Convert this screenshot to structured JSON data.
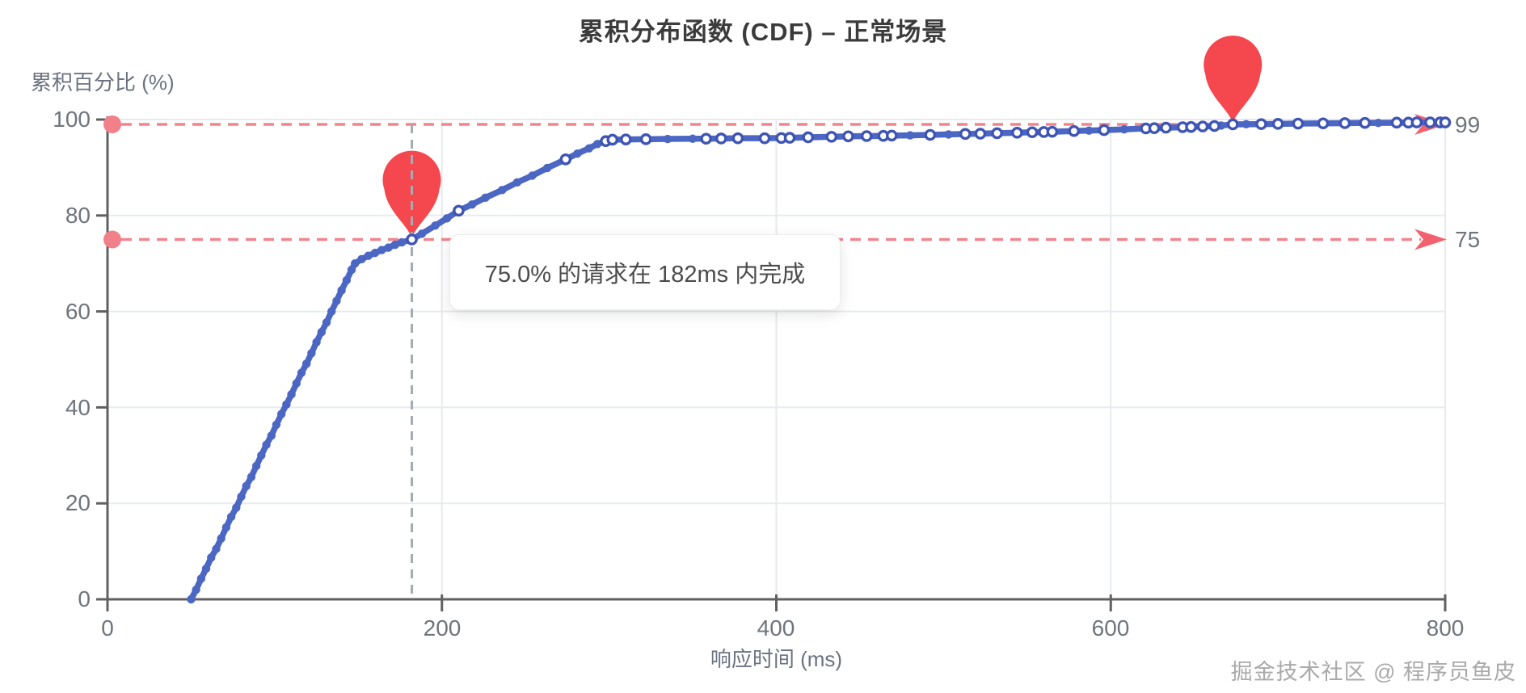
{
  "title": "累积分布函数 (CDF) – 正常场景",
  "watermark": "掘金技术社区 @ 程序员鱼皮",
  "tooltip": {
    "text": "75.0% 的请求在 182ms 内完成"
  },
  "chart_data": {
    "type": "line",
    "title": "累积分布函数 (CDF) – 正常场景",
    "xlabel": "响应时间 (ms)",
    "ylabel": "累积百分比 (%)",
    "xlim": [
      0,
      800
    ],
    "ylim": [
      0,
      100
    ],
    "x_ticks": [
      0,
      200,
      400,
      600,
      800
    ],
    "y_ticks": [
      0,
      20,
      40,
      60,
      80,
      100
    ],
    "grid": true,
    "colors": {
      "line": "#4b67c3",
      "marker_stroke": "#3f55b5",
      "marker_fill": "#ffffff",
      "dashed_red": "#f2848e",
      "red_accent": "#f2626e",
      "pin_red": "#f4484e",
      "dot_pink": "#f2808a",
      "vline_gray": "#a6abb3",
      "grid_gray": "#e8eaee",
      "axis_gray": "#606060"
    },
    "annotations": {
      "p99": {
        "percent": 99,
        "ms": 673,
        "right_label": "99"
      },
      "p75": {
        "percent": 75,
        "ms": 182,
        "right_label": "75"
      },
      "vline_ms": 182,
      "tooltip_text": "75.0% 的请求在 182ms 内完成"
    },
    "series": [
      {
        "name": "CDF",
        "points": [
          [
            50,
            0,
            0
          ],
          [
            53,
            2,
            0
          ],
          [
            56,
            4.3,
            0
          ],
          [
            59,
            6.4,
            0
          ],
          [
            62,
            8.7,
            0
          ],
          [
            65,
            10.5,
            0
          ],
          [
            68,
            12.7,
            0
          ],
          [
            71,
            15,
            0
          ],
          [
            74,
            17.2,
            0
          ],
          [
            77,
            19.1,
            0
          ],
          [
            80,
            21.4,
            0
          ],
          [
            83,
            23.6,
            0
          ],
          [
            86,
            25.5,
            0
          ],
          [
            89,
            27.8,
            0
          ],
          [
            92,
            30,
            0
          ],
          [
            95,
            32.2,
            0
          ],
          [
            98,
            34.1,
            0
          ],
          [
            101,
            36.4,
            0
          ],
          [
            104,
            38.6,
            0
          ],
          [
            107,
            40.6,
            0
          ],
          [
            110,
            42.7,
            0
          ],
          [
            113,
            45,
            0
          ],
          [
            116,
            47.2,
            0
          ],
          [
            119,
            49.1,
            0
          ],
          [
            122,
            51.3,
            0
          ],
          [
            125,
            53.6,
            0
          ],
          [
            128,
            55.7,
            0
          ],
          [
            131,
            57.7,
            0
          ],
          [
            134,
            60,
            0
          ],
          [
            137,
            62.2,
            0
          ],
          [
            140,
            64.4,
            0
          ],
          [
            143,
            66.5,
            0
          ],
          [
            146,
            68.7,
            0
          ],
          [
            148,
            70,
            0
          ],
          [
            152,
            70.9,
            0
          ],
          [
            156,
            71.6,
            0
          ],
          [
            160,
            72.2,
            0
          ],
          [
            164,
            72.8,
            0
          ],
          [
            168,
            73.3,
            0
          ],
          [
            172,
            73.9,
            0
          ],
          [
            176,
            74.4,
            0
          ],
          [
            182,
            75,
            1
          ],
          [
            188,
            76.2,
            0
          ],
          [
            196,
            77.9,
            0
          ],
          [
            203,
            79.4,
            0
          ],
          [
            210,
            81,
            1
          ],
          [
            218,
            82.3,
            0
          ],
          [
            226,
            83.7,
            0
          ],
          [
            236,
            85.3,
            0
          ],
          [
            245,
            86.9,
            0
          ],
          [
            254,
            88.3,
            0
          ],
          [
            263,
            89.9,
            0
          ],
          [
            274,
            91.7,
            1
          ],
          [
            281,
            92.9,
            0
          ],
          [
            288,
            94,
            0
          ],
          [
            293,
            94.9,
            0
          ],
          [
            298,
            95.5,
            1
          ],
          [
            302,
            95.8,
            1
          ],
          [
            310,
            95.85,
            1
          ],
          [
            322,
            95.9,
            1
          ],
          [
            335,
            95.95,
            0
          ],
          [
            350,
            96,
            0
          ],
          [
            358,
            96,
            1
          ],
          [
            367,
            96.05,
            1
          ],
          [
            377,
            96.1,
            1
          ],
          [
            393,
            96.1,
            1
          ],
          [
            403,
            96.15,
            1
          ],
          [
            408,
            96.2,
            1
          ],
          [
            419,
            96.3,
            1
          ],
          [
            433,
            96.4,
            1
          ],
          [
            443,
            96.5,
            1
          ],
          [
            454,
            96.55,
            1
          ],
          [
            464,
            96.6,
            1
          ],
          [
            469,
            96.65,
            1
          ],
          [
            480,
            96.7,
            0
          ],
          [
            492,
            96.8,
            1
          ],
          [
            503,
            96.9,
            0
          ],
          [
            513,
            97,
            1
          ],
          [
            522,
            97.05,
            1
          ],
          [
            532,
            97.15,
            1
          ],
          [
            544,
            97.25,
            1
          ],
          [
            553,
            97.35,
            1
          ],
          [
            560,
            97.4,
            1
          ],
          [
            565,
            97.45,
            1
          ],
          [
            578,
            97.6,
            1
          ],
          [
            587,
            97.7,
            0
          ],
          [
            596,
            97.8,
            1
          ],
          [
            608,
            97.95,
            0
          ],
          [
            621,
            98.15,
            1
          ],
          [
            626,
            98.2,
            1
          ],
          [
            633,
            98.3,
            1
          ],
          [
            643,
            98.4,
            1
          ],
          [
            648,
            98.45,
            1
          ],
          [
            655,
            98.55,
            1
          ],
          [
            662,
            98.65,
            1
          ],
          [
            666,
            98.75,
            0
          ],
          [
            673,
            99,
            1
          ],
          [
            681,
            99.02,
            0
          ],
          [
            690,
            99.05,
            1
          ],
          [
            700,
            99.1,
            1
          ],
          [
            712,
            99.15,
            1
          ],
          [
            727,
            99.2,
            1
          ],
          [
            740,
            99.25,
            1
          ],
          [
            752,
            99.3,
            1
          ],
          [
            760,
            99.3,
            0
          ],
          [
            771,
            99.35,
            1
          ],
          [
            778,
            99.35,
            1
          ],
          [
            783,
            99.4,
            1
          ],
          [
            791,
            99.4,
            1
          ],
          [
            797,
            99.4,
            1
          ],
          [
            800,
            99.4,
            1
          ]
        ]
      }
    ]
  }
}
